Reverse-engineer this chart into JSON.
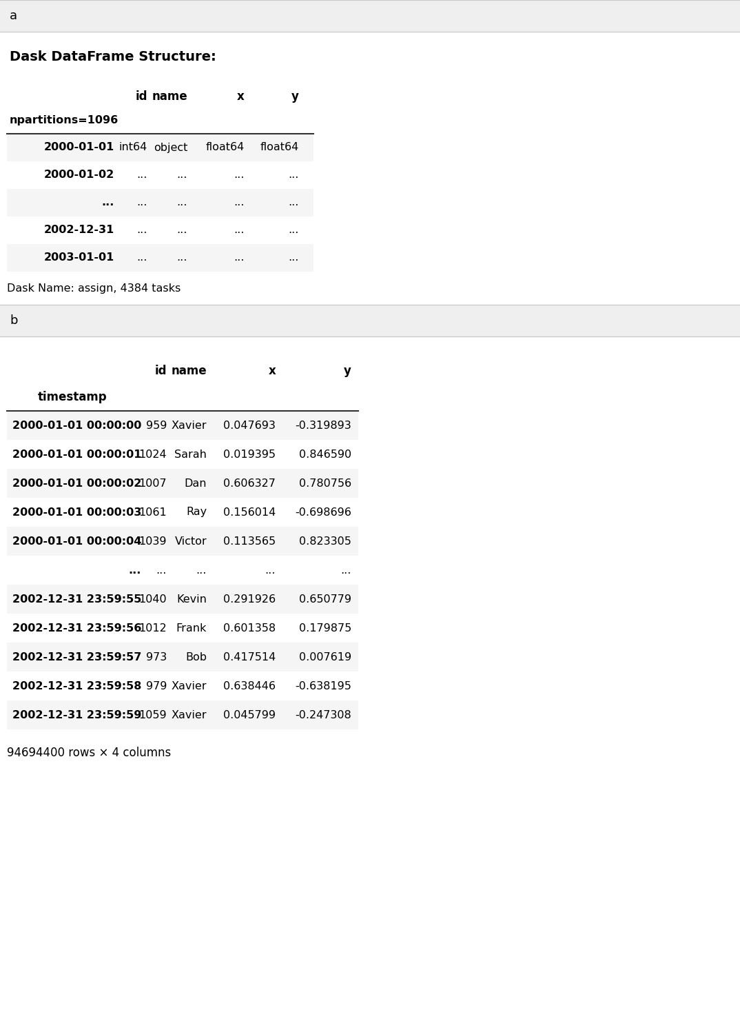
{
  "section_a_label": "a",
  "section_b_label": "b",
  "dask_title": "Dask DataFrame Structure:",
  "dask_columns": [
    "id",
    "name",
    "x",
    "y"
  ],
  "dask_index_label": "npartitions=1096",
  "dask_rows": [
    {
      "index": "2000-01-01",
      "id": "int64",
      "name": "object",
      "x": "float64",
      "y": "float64"
    },
    {
      "index": "2000-01-02",
      "id": "...",
      "name": "...",
      "x": "...",
      "y": "..."
    },
    {
      "index": "...",
      "id": "...",
      "name": "...",
      "x": "...",
      "y": "..."
    },
    {
      "index": "2002-12-31",
      "id": "...",
      "name": "...",
      "x": "...",
      "y": "..."
    },
    {
      "index": "2003-01-01",
      "id": "...",
      "name": "...",
      "x": "...",
      "y": "..."
    }
  ],
  "dask_footer": "Dask Name: assign, 4384 tasks",
  "pandas_columns": [
    "id",
    "name",
    "x",
    "y"
  ],
  "pandas_index_label": "timestamp",
  "pandas_rows": [
    {
      "index": "2000-01-01 00:00:00",
      "id": "959",
      "name": "Xavier",
      "x": "0.047693",
      "y": "-0.319893"
    },
    {
      "index": "2000-01-01 00:00:01",
      "id": "1024",
      "name": "Sarah",
      "x": "0.019395",
      "y": "0.846590"
    },
    {
      "index": "2000-01-01 00:00:02",
      "id": "1007",
      "name": "Dan",
      "x": "0.606327",
      "y": "0.780756"
    },
    {
      "index": "2000-01-01 00:00:03",
      "id": "1061",
      "name": "Ray",
      "x": "0.156014",
      "y": "-0.698696"
    },
    {
      "index": "2000-01-01 00:00:04",
      "id": "1039",
      "name": "Victor",
      "x": "0.113565",
      "y": "0.823305"
    },
    {
      "index": "...",
      "id": "...",
      "name": "...",
      "x": "...",
      "y": "..."
    },
    {
      "index": "2002-12-31 23:59:55",
      "id": "1040",
      "name": "Kevin",
      "x": "0.291926",
      "y": "0.650779"
    },
    {
      "index": "2002-12-31 23:59:56",
      "id": "1012",
      "name": "Frank",
      "x": "0.601358",
      "y": "0.179875"
    },
    {
      "index": "2002-12-31 23:59:57",
      "id": "973",
      "name": "Bob",
      "x": "0.417514",
      "y": "0.007619"
    },
    {
      "index": "2002-12-31 23:59:58",
      "id": "979",
      "name": "Xavier",
      "x": "0.638446",
      "y": "-0.638195"
    },
    {
      "index": "2002-12-31 23:59:59",
      "id": "1059",
      "name": "Xavier",
      "x": "0.045799",
      "y": "-0.247308"
    }
  ],
  "pandas_footer": "94694400 rows × 4 columns",
  "bg_color": "#ffffff",
  "section_header_bg": "#efefef",
  "row_even_bg": "#f5f5f5",
  "row_odd_bg": "#ffffff",
  "section_border_color": "#cccccc"
}
